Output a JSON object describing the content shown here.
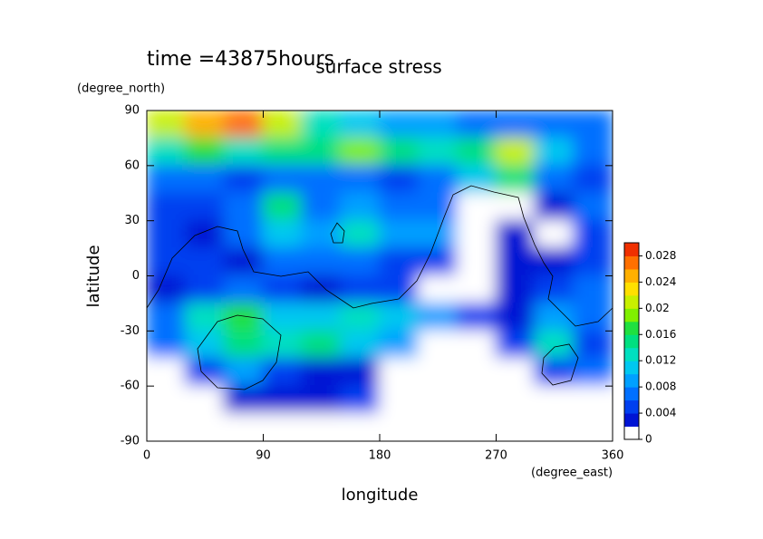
{
  "chart_data": {
    "type": "contour",
    "title": "surface stress",
    "subtitle": "time =43875hours",
    "y_unit": "(degree_north)",
    "x_unit": "(degree_east)",
    "xlabel": "longitude",
    "ylabel": "latitude",
    "xlim": [
      0,
      360
    ],
    "ylim": [
      -90,
      90
    ],
    "xticks": [
      0,
      90,
      180,
      270,
      360
    ],
    "yticks": [
      -90,
      -60,
      -30,
      0,
      30,
      60,
      90
    ],
    "x": [
      15,
      45,
      75,
      105,
      135,
      165,
      195,
      225,
      255,
      285,
      315,
      345
    ],
    "y": [
      82.5,
      67.5,
      52.5,
      37.5,
      22.5,
      7.5,
      -7.5,
      -22.5,
      -37.5,
      -52.5,
      -67.5,
      -82.5
    ],
    "z": [
      [
        0.02,
        0.024,
        0.026,
        0.02,
        0.012,
        0.01,
        0.008,
        0.008,
        0.006,
        0.006,
        0.006,
        0.006
      ],
      [
        0.012,
        0.016,
        0.012,
        0.014,
        0.014,
        0.018,
        0.014,
        0.012,
        0.014,
        0.02,
        0.01,
        0.006
      ],
      [
        0.006,
        0.006,
        0.004,
        0.006,
        0.006,
        0.006,
        0.004,
        0.006,
        0.01,
        0.014,
        0.006,
        0.004
      ],
      [
        0.004,
        0.004,
        0.006,
        0.014,
        0.006,
        0.008,
        0.006,
        0.006,
        0,
        0,
        0.002,
        0.006
      ],
      [
        0.004,
        0.002,
        0.006,
        0.01,
        0.008,
        0.012,
        0.008,
        0.008,
        0,
        0.002,
        0,
        0.004
      ],
      [
        0.004,
        0.004,
        0.002,
        0.006,
        0.006,
        0.006,
        0.004,
        0.004,
        0,
        0.002,
        0.002,
        0.004
      ],
      [
        0.002,
        0.004,
        0.006,
        0.004,
        0.002,
        0.004,
        0.004,
        0,
        0,
        0.002,
        0.004,
        0.006
      ],
      [
        0.006,
        0.012,
        0.016,
        0.01,
        0.01,
        0.012,
        0.01,
        0.008,
        0.004,
        0.002,
        0.008,
        0.006
      ],
      [
        0.006,
        0.01,
        0.014,
        0.012,
        0.014,
        0.01,
        0.008,
        0,
        0,
        0.004,
        0.012,
        0.004
      ],
      [
        0,
        0.004,
        0.008,
        0.004,
        0.002,
        0.002,
        0,
        0,
        0,
        0,
        0.004,
        0.006
      ],
      [
        0,
        0,
        0.002,
        0.002,
        0.002,
        0.004,
        0,
        0,
        0,
        0,
        0,
        0
      ],
      [
        0,
        0,
        0,
        0,
        0,
        0,
        0,
        0,
        0,
        0,
        0,
        0
      ]
    ],
    "clim": [
      0,
      0.03
    ],
    "cticks": [
      0,
      0.004,
      0.008,
      0.012,
      0.016,
      0.02,
      0.024,
      0.028
    ],
    "colormap": [
      "#ffffff",
      "#0014d4",
      "#0040f0",
      "#0070ff",
      "#00a0ff",
      "#00c8f0",
      "#00e0c0",
      "#00e080",
      "#20e040",
      "#80f000",
      "#c8f000",
      "#ffe000",
      "#ffb000",
      "#ff7000",
      "#f03000"
    ]
  }
}
